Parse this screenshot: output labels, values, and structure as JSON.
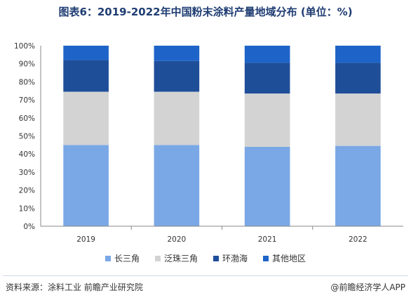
{
  "title": "图表6：2019-2022年中国粉末涂料产量地域分布 (单位：%)",
  "source": "资料来源：涂料工业 前瞻产业研究院",
  "credit": "@前瞻经济学人APP",
  "chart_data": {
    "type": "bar",
    "stacked": true,
    "categories": [
      "2019",
      "2020",
      "2021",
      "2022"
    ],
    "series": [
      {
        "name": "长三角",
        "color": "#7aa8e6",
        "values": [
          45,
          45,
          44,
          44.5
        ]
      },
      {
        "name": "泛珠三角",
        "color": "#d3d3d3",
        "values": [
          29.5,
          29.5,
          29.5,
          29
        ]
      },
      {
        "name": "环渤海",
        "color": "#1f4e99",
        "values": [
          17.5,
          17,
          17,
          17
        ]
      },
      {
        "name": "其他地区",
        "color": "#1e64c8",
        "values": [
          8,
          8.5,
          9.5,
          9.5
        ]
      }
    ],
    "ylim": [
      0,
      100
    ],
    "yticks": [
      "0%",
      "10%",
      "20%",
      "30%",
      "40%",
      "50%",
      "60%",
      "70%",
      "80%",
      "90%",
      "100%"
    ],
    "legend": "bottom"
  }
}
